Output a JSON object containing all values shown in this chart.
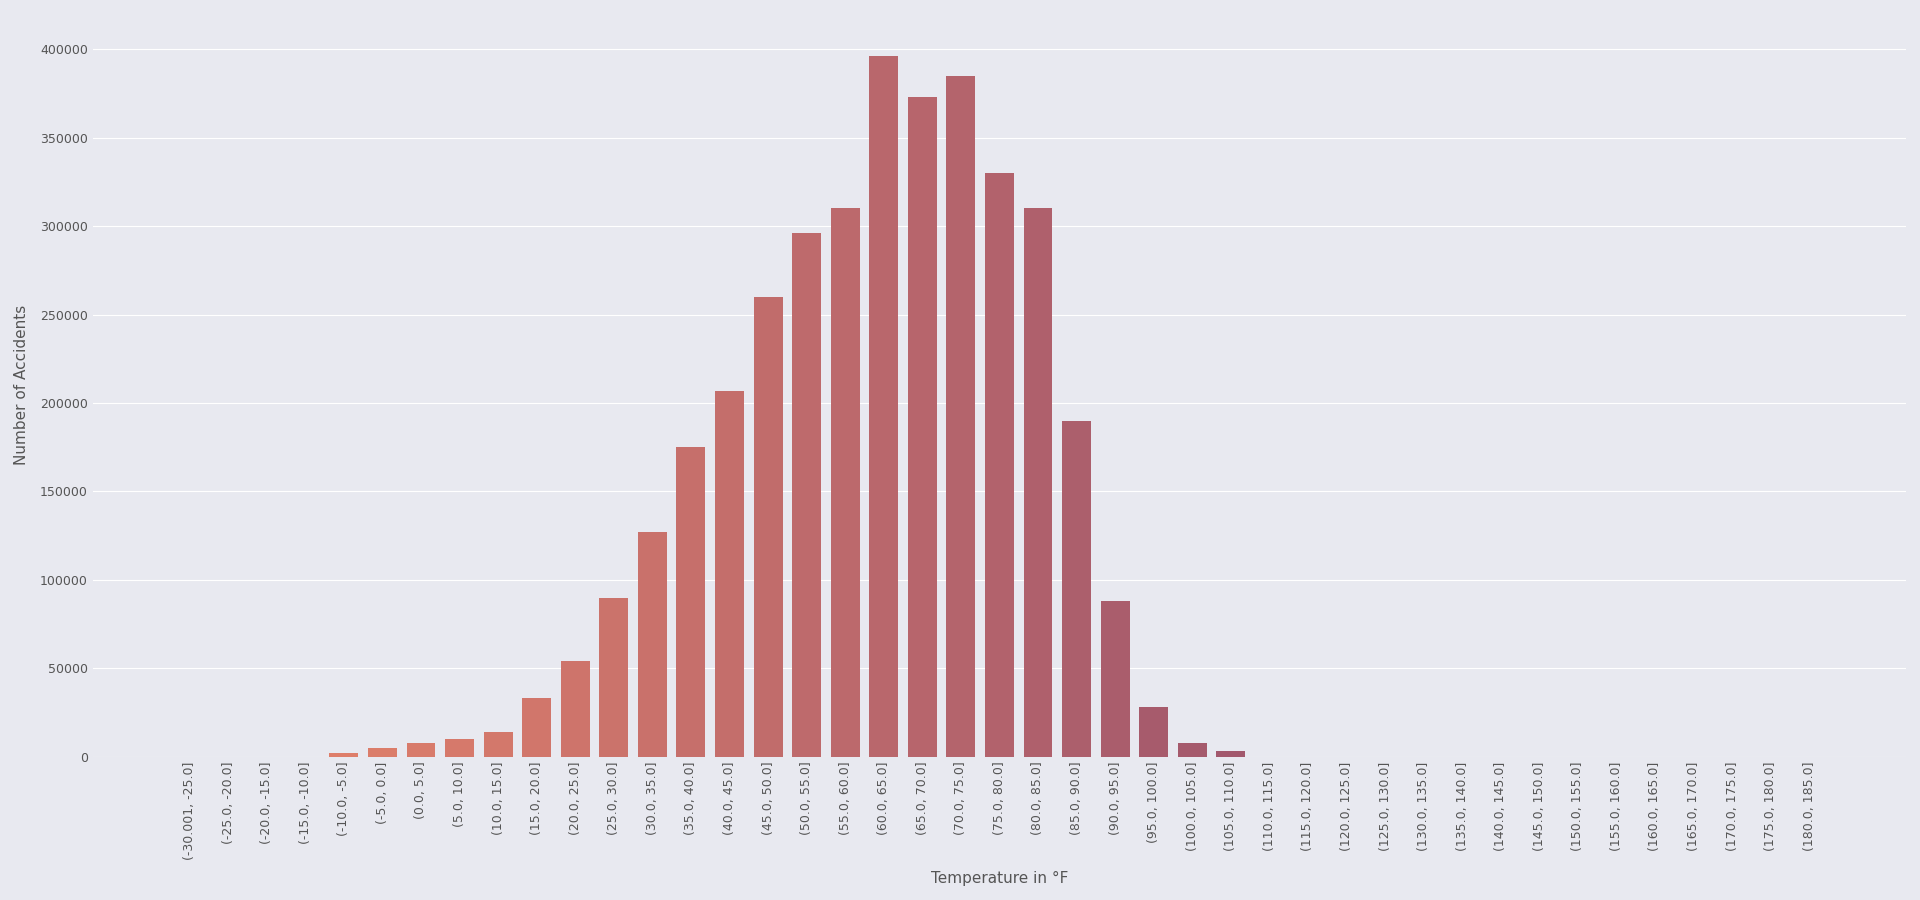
{
  "categories": [
    "(-30.001, -25.0]",
    "(-25.0, -20.0]",
    "(-20.0, -15.0]",
    "(-15.0, -10.0]",
    "(-10.0, -5.0]",
    "(-5.0, 0.0]",
    "(0.0, 5.0]",
    "(5.0, 10.0]",
    "(10.0, 15.0]",
    "(15.0, 20.0]",
    "(20.0, 25.0]",
    "(25.0, 30.0]",
    "(30.0, 35.0]",
    "(35.0, 40.0]",
    "(40.0, 45.0]",
    "(45.0, 50.0]",
    "(50.0, 55.0]",
    "(55.0, 60.0]",
    "(60.0, 65.0]",
    "(65.0, 70.0]",
    "(70.0, 75.0]",
    "(75.0, 80.0]",
    "(80.0, 85.0]",
    "(85.0, 90.0]",
    "(90.0, 95.0]",
    "(95.0, 100.0]",
    "(100.0, 105.0]",
    "(105.0, 110.0]",
    "(110.0, 115.0]",
    "(115.0, 120.0]",
    "(120.0, 125.0]",
    "(125.0, 130.0]",
    "(130.0, 135.0]",
    "(135.0, 140.0]",
    "(140.0, 145.0]",
    "(145.0, 150.0]",
    "(150.0, 155.0]",
    "(155.0, 160.0]",
    "(160.0, 165.0]",
    "(165.0, 170.0]",
    "(170.0, 175.0]",
    "(175.0, 180.0]",
    "(180.0, 185.0]"
  ],
  "values": [
    0,
    0,
    0,
    0,
    2000,
    5000,
    8000,
    10000,
    14000,
    33000,
    54000,
    90000,
    127000,
    175000,
    207000,
    260000,
    296000,
    310000,
    396000,
    373000,
    385000,
    330000,
    310000,
    190000,
    88000,
    28000,
    8000,
    3500,
    0,
    0,
    0,
    0,
    0,
    0,
    0,
    0,
    0,
    0,
    0,
    0,
    0,
    0,
    0
  ],
  "xlabel": "Temperature in °F",
  "ylabel": "Number of Accidents",
  "background_color": "#e8e9f0",
  "plot_bg_color": "#e8e9f0",
  "color_start": "#e8856a",
  "color_end": "#7b3f6e",
  "grid_color": "#ffffff",
  "tick_color": "#555555",
  "yticks": [
    0,
    50000,
    100000,
    150000,
    200000,
    250000,
    300000,
    350000,
    400000
  ],
  "ylim": [
    0,
    420000
  ],
  "figsize": [
    19.2,
    9.0
  ],
  "dpi": 100,
  "bar_width": 0.75,
  "xlabel_fontsize": 11,
  "ylabel_fontsize": 11,
  "tick_fontsize": 9
}
